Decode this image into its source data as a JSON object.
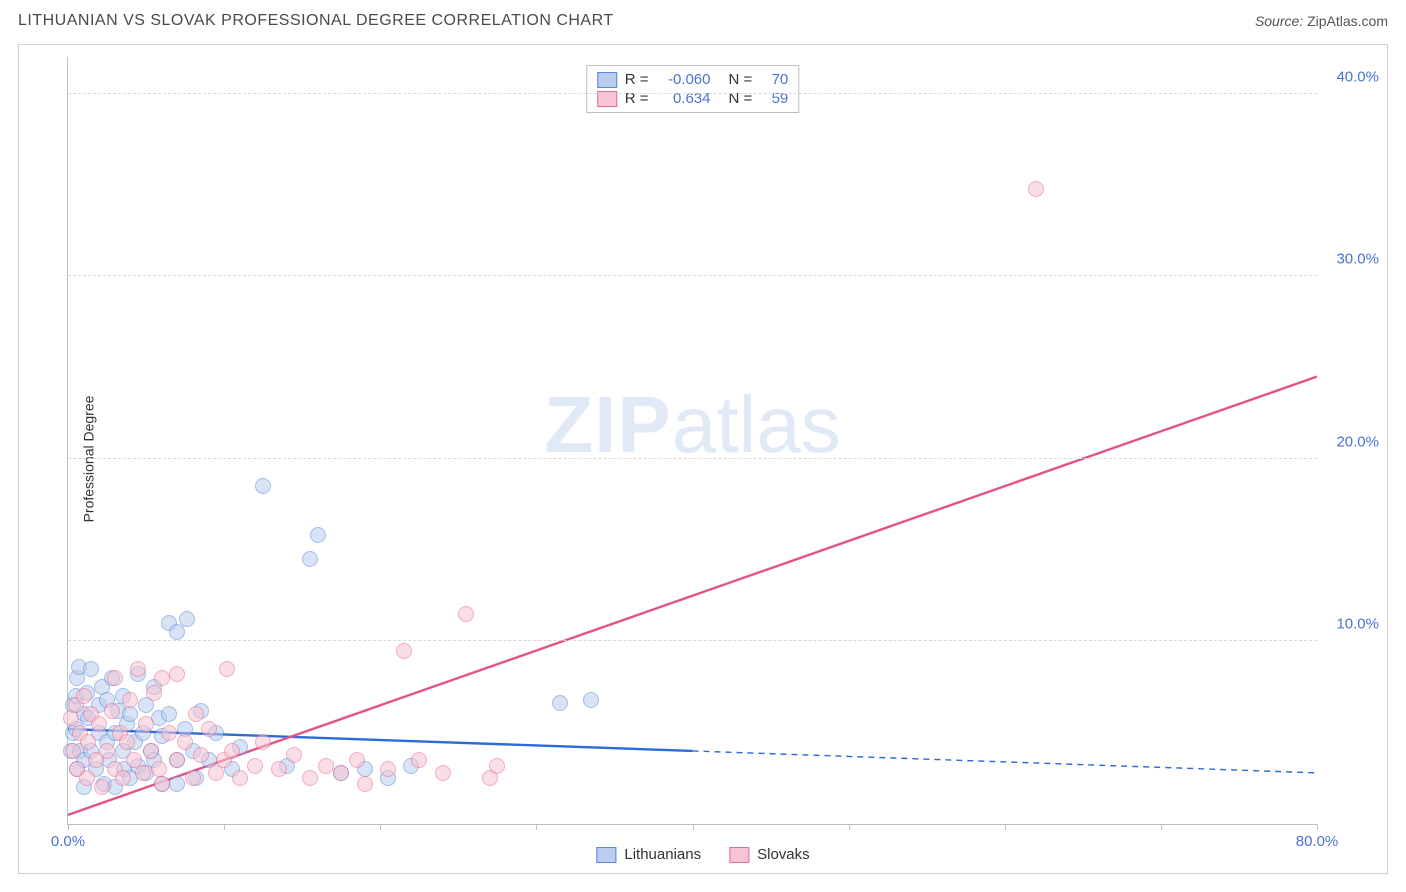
{
  "title": "LITHUANIAN VS SLOVAK PROFESSIONAL DEGREE CORRELATION CHART",
  "source_label": "Source:",
  "source_name": "ZipAtlas.com",
  "ylabel": "Professional Degree",
  "watermark_a": "ZIP",
  "watermark_b": "atlas",
  "chart": {
    "type": "scatter",
    "xlim": [
      0,
      80
    ],
    "ylim": [
      0,
      42
    ],
    "x_ticks": [
      0,
      10,
      20,
      30,
      40,
      50,
      60,
      70,
      80
    ],
    "x_tick_labels": {
      "0": "0.0%",
      "80": "80.0%"
    },
    "y_ticks": [
      10,
      20,
      30,
      40
    ],
    "y_tick_labels": {
      "10": "10.0%",
      "20": "20.0%",
      "30": "30.0%",
      "40": "40.0%"
    },
    "background_color": "#ffffff",
    "grid_color": "#d9d9d9",
    "axis_color": "#bfbfbf",
    "tick_label_color": "#4a72d4",
    "marker_radius": 8,
    "marker_border_width": 1,
    "series": [
      {
        "name": "Lithuanians",
        "fill": "#b9cdee",
        "stroke": "#5a86d6",
        "fill_opacity": 0.55,
        "R": "-0.060",
        "N": "70",
        "trend": {
          "color": "#2e6bd6",
          "width": 2.4,
          "solid": {
            "x1": 0,
            "y1": 5.2,
            "x2": 40,
            "y2": 4.0
          },
          "dashed": {
            "x1": 40,
            "y1": 4.0,
            "x2": 80,
            "y2": 2.8
          }
        },
        "points": [
          [
            0.2,
            4.0
          ],
          [
            0.3,
            5.0
          ],
          [
            0.3,
            6.5
          ],
          [
            0.5,
            7.0
          ],
          [
            0.5,
            5.2
          ],
          [
            0.6,
            3.0
          ],
          [
            0.6,
            8.0
          ],
          [
            0.7,
            8.6
          ],
          [
            0.8,
            4.0
          ],
          [
            1.0,
            6.0
          ],
          [
            1.0,
            3.5
          ],
          [
            1.0,
            2.0
          ],
          [
            1.2,
            7.2
          ],
          [
            1.3,
            5.8
          ],
          [
            1.5,
            4.0
          ],
          [
            1.5,
            8.5
          ],
          [
            1.8,
            3.0
          ],
          [
            2.0,
            6.5
          ],
          [
            2.0,
            5.0
          ],
          [
            2.2,
            7.5
          ],
          [
            2.3,
            2.2
          ],
          [
            2.5,
            4.5
          ],
          [
            2.5,
            6.8
          ],
          [
            2.6,
            3.5
          ],
          [
            2.8,
            8.0
          ],
          [
            3.0,
            5.0
          ],
          [
            3.0,
            2.0
          ],
          [
            3.2,
            6.2
          ],
          [
            3.5,
            4.0
          ],
          [
            3.5,
            7.0
          ],
          [
            3.6,
            3.0
          ],
          [
            3.8,
            5.5
          ],
          [
            4.0,
            2.5
          ],
          [
            4.0,
            6.0
          ],
          [
            4.3,
            4.5
          ],
          [
            4.5,
            8.2
          ],
          [
            4.5,
            3.2
          ],
          [
            4.8,
            5.0
          ],
          [
            5.0,
            6.5
          ],
          [
            5.0,
            2.8
          ],
          [
            5.3,
            4.0
          ],
          [
            5.5,
            7.5
          ],
          [
            5.5,
            3.5
          ],
          [
            5.8,
            5.8
          ],
          [
            6.0,
            2.2
          ],
          [
            6.0,
            4.8
          ],
          [
            6.5,
            6.0
          ],
          [
            6.5,
            11.0
          ],
          [
            7.0,
            3.5
          ],
          [
            7.0,
            10.5
          ],
          [
            7.5,
            5.2
          ],
          [
            7.6,
            11.2
          ],
          [
            8.0,
            4.0
          ],
          [
            8.2,
            2.5
          ],
          [
            8.5,
            6.2
          ],
          [
            9.0,
            3.5
          ],
          [
            9.5,
            5.0
          ],
          [
            10.5,
            3.0
          ],
          [
            11.0,
            4.2
          ],
          [
            12.5,
            18.5
          ],
          [
            14.0,
            3.2
          ],
          [
            15.5,
            14.5
          ],
          [
            16.0,
            15.8
          ],
          [
            17.5,
            2.8
          ],
          [
            19.0,
            3.0
          ],
          [
            20.5,
            2.5
          ],
          [
            22.0,
            3.2
          ],
          [
            31.5,
            6.6
          ],
          [
            33.5,
            6.8
          ],
          [
            7.0,
            2.2
          ]
        ]
      },
      {
        "name": "Slovaks",
        "fill": "#f6c4d2",
        "stroke": "#e76a94",
        "fill_opacity": 0.55,
        "R": "0.634",
        "N": "59",
        "trend": {
          "color": "#e55384",
          "width": 2.4,
          "solid": {
            "x1": 0,
            "y1": 0.5,
            "x2": 80,
            "y2": 24.5
          },
          "dashed": null
        },
        "points": [
          [
            0.2,
            5.8
          ],
          [
            0.3,
            4.0
          ],
          [
            0.5,
            6.5
          ],
          [
            0.6,
            3.0
          ],
          [
            0.8,
            5.0
          ],
          [
            1.0,
            7.0
          ],
          [
            1.2,
            2.5
          ],
          [
            1.3,
            4.5
          ],
          [
            1.5,
            6.0
          ],
          [
            1.8,
            3.5
          ],
          [
            2.0,
            5.5
          ],
          [
            2.2,
            2.0
          ],
          [
            2.5,
            4.0
          ],
          [
            2.8,
            6.2
          ],
          [
            3.0,
            3.0
          ],
          [
            3.0,
            8.0
          ],
          [
            3.3,
            5.0
          ],
          [
            3.5,
            2.5
          ],
          [
            3.8,
            4.5
          ],
          [
            4.0,
            6.8
          ],
          [
            4.2,
            3.5
          ],
          [
            4.5,
            8.5
          ],
          [
            4.8,
            2.8
          ],
          [
            5.0,
            5.5
          ],
          [
            5.3,
            4.0
          ],
          [
            5.5,
            7.2
          ],
          [
            5.8,
            3.0
          ],
          [
            6.0,
            8.0
          ],
          [
            6.0,
            2.2
          ],
          [
            6.5,
            5.0
          ],
          [
            7.0,
            3.5
          ],
          [
            7.0,
            8.2
          ],
          [
            7.5,
            4.5
          ],
          [
            8.0,
            2.5
          ],
          [
            8.2,
            6.0
          ],
          [
            8.5,
            3.8
          ],
          [
            9.0,
            5.2
          ],
          [
            9.5,
            2.8
          ],
          [
            10.0,
            3.5
          ],
          [
            10.2,
            8.5
          ],
          [
            10.5,
            4.0
          ],
          [
            11.0,
            2.5
          ],
          [
            12.0,
            3.2
          ],
          [
            12.5,
            4.5
          ],
          [
            13.5,
            3.0
          ],
          [
            14.5,
            3.8
          ],
          [
            15.5,
            2.5
          ],
          [
            16.5,
            3.2
          ],
          [
            17.5,
            2.8
          ],
          [
            18.5,
            3.5
          ],
          [
            19.0,
            2.2
          ],
          [
            20.5,
            3.0
          ],
          [
            21.5,
            9.5
          ],
          [
            22.5,
            3.5
          ],
          [
            24.0,
            2.8
          ],
          [
            25.5,
            11.5
          ],
          [
            27.0,
            2.5
          ],
          [
            27.5,
            3.2
          ],
          [
            62.0,
            34.8
          ]
        ]
      }
    ]
  },
  "legend_stats_title": {
    "R": "R =",
    "N": "N ="
  }
}
